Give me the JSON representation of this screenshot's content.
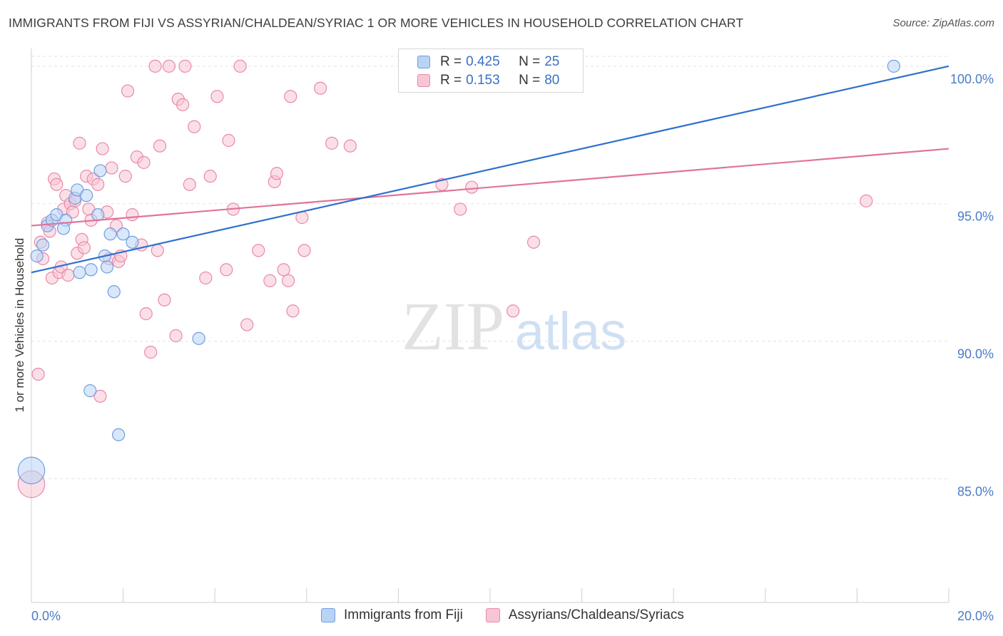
{
  "title": "IMMIGRANTS FROM FIJI VS ASSYRIAN/CHALDEAN/SYRIAC 1 OR MORE VEHICLES IN HOUSEHOLD CORRELATION CHART",
  "source": "Source: ZipAtlas.com",
  "watermark": {
    "zip": "ZIP",
    "atlas": "atlas"
  },
  "colors": {
    "blue_fill": "#b9d3f5",
    "blue_stroke": "#6f9fe0",
    "blue_line": "#2f6fcf",
    "pink_fill": "#f7c5d4",
    "pink_stroke": "#e88aa8",
    "pink_line": "#e0739a",
    "tick_text": "#4a7cc9",
    "grid": "#e2e2e2"
  },
  "legend": {
    "rows": [
      {
        "r_label": "R =",
        "r_value": "0.425",
        "n_label": "N =",
        "n_value": "25"
      },
      {
        "r_label": "R =",
        "r_value": "0.153",
        "n_label": "N =",
        "n_value": "80"
      }
    ]
  },
  "bottom_legend": [
    "Immigrants from Fiji",
    "Assyrians/Chaldeans/Syriacs"
  ],
  "chart_data": {
    "type": "scatter",
    "title": "IMMIGRANTS FROM FIJI VS ASSYRIAN/CHALDEAN/SYRIAC 1 OR MORE VEHICLES IN HOUSEHOLD CORRELATION CHART",
    "xlabel": "",
    "ylabel": "1 or more Vehicles in Household",
    "xlim": [
      0,
      20
    ],
    "ylim": [
      80.5,
      100.8
    ],
    "x_tick_labels": [
      "0.0%",
      "20.0%"
    ],
    "y_ticks": [
      85,
      90,
      95,
      100
    ],
    "y_tick_labels": [
      "85.0%",
      "90.0%",
      "95.0%",
      "100.0%"
    ],
    "grid": true,
    "legend_position": "top-center",
    "series": [
      {
        "name": "Immigrants from Fiji",
        "r": 0.425,
        "n": 25,
        "trend": [
          [
            0,
            92.5
          ],
          [
            20,
            100.0
          ]
        ],
        "points": [
          [
            0.0,
            85.3,
            2.2
          ],
          [
            0.12,
            93.1,
            1
          ],
          [
            0.25,
            93.5,
            1
          ],
          [
            0.35,
            94.2,
            1
          ],
          [
            0.45,
            94.4,
            1
          ],
          [
            0.55,
            94.6,
            1
          ],
          [
            0.75,
            94.4,
            1
          ],
          [
            0.7,
            94.1,
            1
          ],
          [
            0.95,
            95.2,
            1
          ],
          [
            1.0,
            95.5,
            1
          ],
          [
            1.05,
            92.5,
            1
          ],
          [
            1.2,
            95.3,
            1
          ],
          [
            1.3,
            92.6,
            1
          ],
          [
            1.28,
            88.2,
            1
          ],
          [
            1.45,
            94.6,
            1
          ],
          [
            1.5,
            96.2,
            1
          ],
          [
            1.6,
            93.1,
            1
          ],
          [
            1.65,
            92.7,
            1
          ],
          [
            1.72,
            93.9,
            1
          ],
          [
            1.8,
            91.8,
            1
          ],
          [
            1.9,
            86.6,
            1
          ],
          [
            2.0,
            93.9,
            1
          ],
          [
            2.2,
            93.6,
            1
          ],
          [
            3.65,
            90.1,
            1
          ],
          [
            18.8,
            100.0,
            1
          ]
        ]
      },
      {
        "name": "Assyrians/Chaldeans/Syriacs",
        "r": 0.153,
        "n": 80,
        "trend": [
          [
            0,
            94.2
          ],
          [
            20,
            97.0
          ]
        ],
        "points": [
          [
            0.0,
            84.8,
            2.2
          ],
          [
            0.15,
            88.8,
            1
          ],
          [
            0.2,
            93.6,
            1
          ],
          [
            0.25,
            93.0,
            1
          ],
          [
            0.35,
            94.3,
            1
          ],
          [
            0.4,
            94.0,
            1
          ],
          [
            0.45,
            92.3,
            1
          ],
          [
            0.5,
            95.9,
            1
          ],
          [
            0.55,
            95.7,
            1
          ],
          [
            0.6,
            92.5,
            1
          ],
          [
            0.65,
            92.7,
            1
          ],
          [
            0.75,
            95.3,
            1
          ],
          [
            0.7,
            94.8,
            1
          ],
          [
            0.8,
            92.4,
            1
          ],
          [
            0.85,
            95.0,
            1
          ],
          [
            0.9,
            94.7,
            1
          ],
          [
            0.95,
            95.1,
            1
          ],
          [
            1.0,
            93.2,
            1
          ],
          [
            1.05,
            97.2,
            1
          ],
          [
            1.1,
            93.7,
            1
          ],
          [
            1.15,
            93.4,
            1
          ],
          [
            1.2,
            96.0,
            1
          ],
          [
            1.25,
            94.8,
            1
          ],
          [
            1.3,
            94.4,
            1
          ],
          [
            1.35,
            95.9,
            1
          ],
          [
            1.45,
            95.7,
            1
          ],
          [
            1.5,
            88.0,
            1
          ],
          [
            1.55,
            97.0,
            1
          ],
          [
            1.65,
            94.7,
            1
          ],
          [
            1.7,
            93.0,
            1
          ],
          [
            1.75,
            96.3,
            1
          ],
          [
            1.85,
            94.2,
            1
          ],
          [
            1.9,
            92.9,
            1
          ],
          [
            1.95,
            93.1,
            1
          ],
          [
            2.05,
            96.0,
            1
          ],
          [
            2.1,
            99.1,
            1
          ],
          [
            2.2,
            94.6,
            1
          ],
          [
            2.3,
            96.7,
            1
          ],
          [
            2.4,
            93.5,
            1
          ],
          [
            2.45,
            96.5,
            1
          ],
          [
            2.5,
            91.0,
            1
          ],
          [
            2.6,
            89.6,
            1
          ],
          [
            2.7,
            100.0,
            1
          ],
          [
            2.75,
            93.3,
            1
          ],
          [
            2.8,
            97.1,
            1
          ],
          [
            2.9,
            91.5,
            1
          ],
          [
            3.0,
            100.0,
            1
          ],
          [
            3.15,
            90.2,
            1
          ],
          [
            3.2,
            98.8,
            1
          ],
          [
            3.3,
            98.6,
            1
          ],
          [
            3.35,
            100.0,
            1
          ],
          [
            3.45,
            95.7,
            1
          ],
          [
            3.55,
            97.8,
            1
          ],
          [
            3.8,
            92.3,
            1
          ],
          [
            3.9,
            96.0,
            1
          ],
          [
            4.05,
            98.9,
            1
          ],
          [
            4.25,
            92.6,
            1
          ],
          [
            4.3,
            97.3,
            1
          ],
          [
            4.4,
            94.8,
            1
          ],
          [
            4.55,
            100.0,
            1
          ],
          [
            4.7,
            90.6,
            1
          ],
          [
            4.95,
            93.3,
            1
          ],
          [
            5.2,
            92.2,
            1
          ],
          [
            5.3,
            95.8,
            1
          ],
          [
            5.35,
            96.1,
            1
          ],
          [
            5.5,
            92.6,
            1
          ],
          [
            5.6,
            92.2,
            1
          ],
          [
            5.65,
            98.9,
            1
          ],
          [
            5.7,
            91.1,
            1
          ],
          [
            5.9,
            94.5,
            1
          ],
          [
            5.95,
            93.3,
            1
          ],
          [
            6.3,
            99.2,
            1
          ],
          [
            6.55,
            97.2,
            1
          ],
          [
            6.95,
            97.1,
            1
          ],
          [
            8.95,
            95.7,
            1
          ],
          [
            9.35,
            94.8,
            1
          ],
          [
            9.6,
            95.6,
            1
          ],
          [
            10.5,
            91.1,
            1
          ],
          [
            10.95,
            93.6,
            1
          ],
          [
            18.2,
            95.1,
            1
          ]
        ]
      }
    ]
  }
}
